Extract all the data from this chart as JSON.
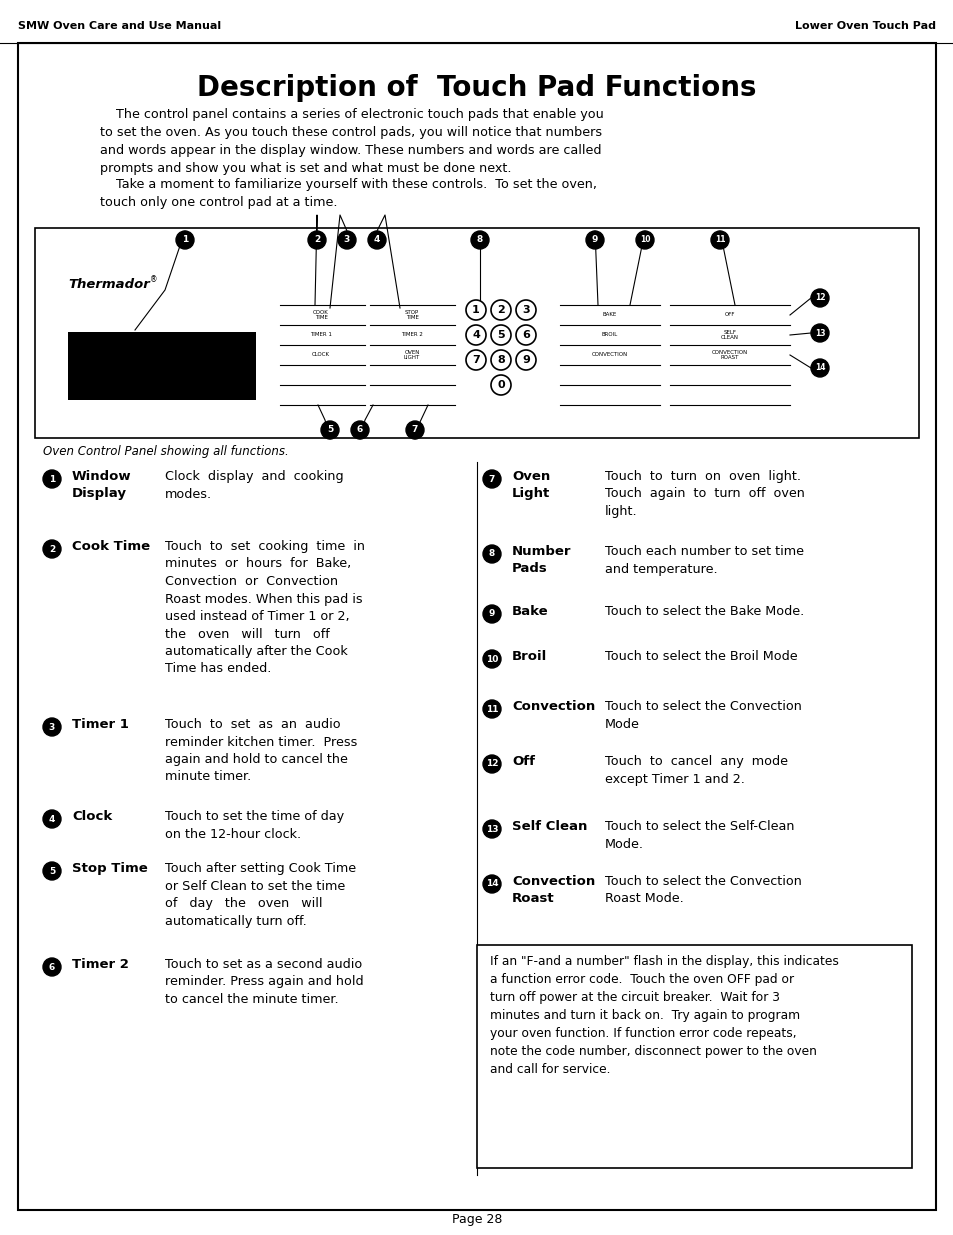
{
  "page_title": "Description of  Touch Pad Functions",
  "header_left": "SMW Oven Care and Use Manual",
  "header_right": "Lower Oven Touch Pad",
  "footer": "Page 28",
  "diagram_caption": "Oven Control Panel showing all functions.",
  "items_left": [
    {
      "num": "1",
      "label": "Window\nDisplay",
      "desc": "Clock  display  and  cooking\nmodes."
    },
    {
      "num": "2",
      "label": "Cook Time",
      "desc": "Touch  to  set  cooking  time  in\nminutes  or  hours  for  Bake,\nConvection  or  Convection\nRoast modes. When this pad is\nused instead of Timer 1 or 2,\nthe   oven   will   turn   off\nautomatically after the Cook\nTime has ended."
    },
    {
      "num": "3",
      "label": "Timer 1",
      "desc": "Touch  to  set  as  an  audio\nreminder kitchen timer.  Press\nagain and hold to cancel the\nminute timer."
    },
    {
      "num": "4",
      "label": "Clock",
      "desc": "Touch to set the time of day\non the 12-hour clock."
    },
    {
      "num": "5",
      "label": "Stop Time",
      "desc": "Touch after setting Cook Time\nor Self Clean to set the time\nof   day   the   oven   will\nautomatically turn off."
    },
    {
      "num": "6",
      "label": "Timer 2",
      "desc": "Touch to set as a second audio\nreminder. Press again and hold\nto cancel the minute timer."
    }
  ],
  "items_right": [
    {
      "num": "7",
      "label": "Oven\nLight",
      "desc": "Touch  to  turn  on  oven  light.\nTouch  again  to  turn  off  oven\nlight."
    },
    {
      "num": "8",
      "label": "Number\nPads",
      "desc": "Touch each number to set time\nand temperature."
    },
    {
      "num": "9",
      "label": "Bake",
      "desc": "Touch to select the Bake Mode."
    },
    {
      "num": "10",
      "label": "Broil",
      "desc": "Touch to select the Broil Mode"
    },
    {
      "num": "11",
      "label": "Convection",
      "desc": "Touch to select the Convection\nMode"
    },
    {
      "num": "12",
      "label": "Off",
      "desc": "Touch  to  cancel  any  mode\nexcept Timer 1 and 2."
    },
    {
      "num": "13",
      "label": "Self Clean",
      "desc": "Touch to select the Self-Clean\nMode."
    },
    {
      "num": "14",
      "label": "Convection\nRoast",
      "desc": "Touch to select the Convection\nRoast Mode."
    }
  ],
  "note_text": "If an \"F-and a number\" flash in the display, this indicates\na function error code.  Touch the oven OFF pad or\nturn off power at the circuit breaker.  Wait for 3\nminutes and turn it back on.  Try again to program\nyour oven function. If function error code repeats,\nnote the code number, disconnect power to the oven\nand call for service.",
  "bg_color": "#ffffff"
}
